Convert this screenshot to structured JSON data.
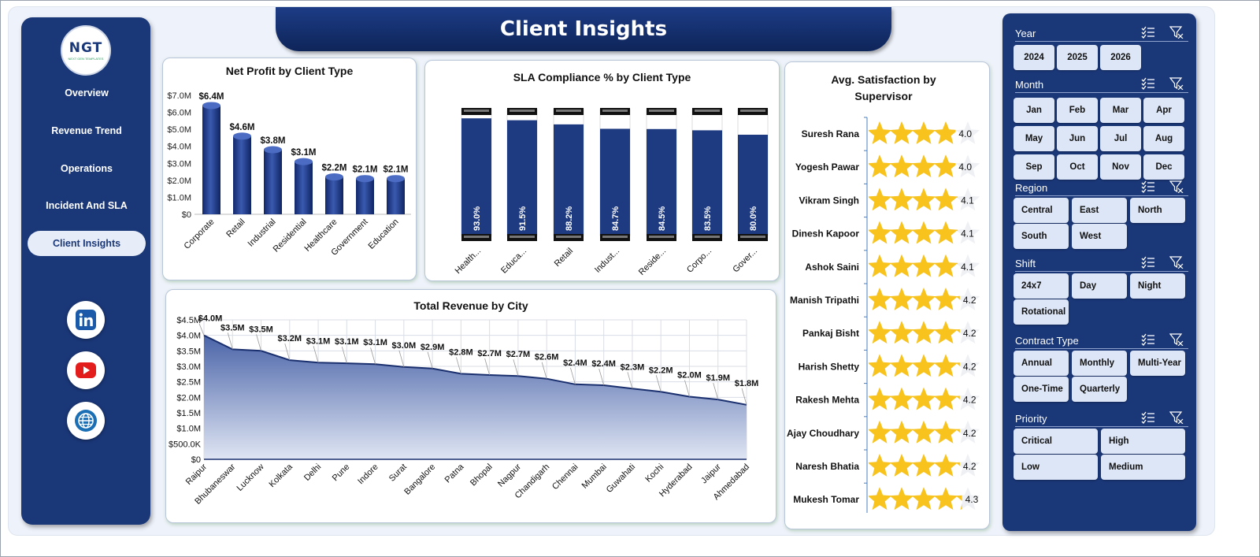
{
  "header": {
    "title": "Client Insights"
  },
  "logo": {
    "text": "NGT",
    "subtext": "NEXT GEN TEMPLATES"
  },
  "nav": {
    "items": [
      "Overview",
      "Revenue Trend",
      "Operations",
      "Incident And SLA",
      "Client Insights"
    ],
    "active": "Client Insights"
  },
  "social": [
    "linkedin-icon",
    "youtube-icon",
    "globe-icon"
  ],
  "colors": {
    "navy": "#1a3778",
    "bar": "#1e3a80",
    "star": "#f7c31c",
    "area_top": "#4a64a8",
    "area_bottom": "#dfe5f3"
  },
  "chart_data": [
    {
      "id": "net_profit",
      "type": "bar",
      "title": "Net Profit by Client Type",
      "categories": [
        "Corporate",
        "Retail",
        "Industrial",
        "Residential",
        "Healthcare",
        "Government",
        "Education"
      ],
      "values": [
        6.4,
        4.6,
        3.8,
        3.1,
        2.2,
        2.1,
        2.1
      ],
      "labels": [
        "$6.4M",
        "$4.6M",
        "$3.8M",
        "$3.1M",
        "$2.2M",
        "$2.1M",
        "$2.1M"
      ],
      "yticks": [
        "$0",
        "$1.0M",
        "$2.0M",
        "$3.0M",
        "$4.0M",
        "$5.0M",
        "$6.0M",
        "$7.0M"
      ],
      "ylim": [
        0,
        7
      ]
    },
    {
      "id": "sla",
      "type": "bar",
      "title": "SLA Compliance % by Client Type",
      "categories": [
        "Health...",
        "Educa...",
        "Retail",
        "Indust...",
        "Reside...",
        "Corpo...",
        "Gover..."
      ],
      "values": [
        93.0,
        91.5,
        88.2,
        84.7,
        84.5,
        83.5,
        80.0
      ],
      "labels": [
        "93.0%",
        "91.5%",
        "88.2%",
        "84.7%",
        "84.5%",
        "83.5%",
        "80.0%"
      ],
      "ylim": [
        0,
        100
      ]
    },
    {
      "id": "satisfaction",
      "type": "bar",
      "title": "Avg. Satisfaction by Supervisor",
      "categories": [
        "Suresh Rana",
        "Yogesh Pawar",
        "Vikram Singh",
        "Dinesh Kapoor",
        "Ashok Saini",
        "Manish Tripathi",
        "Pankaj Bisht",
        "Harish Shetty",
        "Rakesh Mehta",
        "Ajay Choudhary",
        "Naresh Bhatia",
        "Mukesh Tomar"
      ],
      "values": [
        4.0,
        4.0,
        4.1,
        4.1,
        4.1,
        4.2,
        4.2,
        4.2,
        4.2,
        4.2,
        4.2,
        4.3
      ],
      "labels": [
        "4.0",
        "4.0",
        "4.1",
        "4.1",
        "4.1",
        "4.2",
        "4.2",
        "4.2",
        "4.2",
        "4.2",
        "4.2",
        "4.3"
      ],
      "max": 5
    },
    {
      "id": "revenue_city",
      "type": "area",
      "title": "Total Revenue  by City",
      "categories": [
        "Raipur",
        "Bhubaneswar",
        "Lucknow",
        "Kolkata",
        "Delhi",
        "Pune",
        "Indore",
        "Surat",
        "Bangalore",
        "Patna",
        "Bhopal",
        "Nagpur",
        "Chandigarh",
        "Chennai",
        "Mumbai",
        "Guwahati",
        "Kochi",
        "Hyderabad",
        "Jaipur",
        "Ahmedabad"
      ],
      "values": [
        4.0,
        3.55,
        3.5,
        3.2,
        3.12,
        3.1,
        3.07,
        2.98,
        2.93,
        2.76,
        2.72,
        2.69,
        2.6,
        2.42,
        2.39,
        2.28,
        2.18,
        2.02,
        1.93,
        1.76
      ],
      "labels": [
        "$4.0M",
        "$3.5M",
        "$3.5M",
        "$3.2M",
        "$3.1M",
        "$3.1M",
        "$3.1M",
        "$3.0M",
        "$2.9M",
        "$2.8M",
        "$2.7M",
        "$2.7M",
        "$2.6M",
        "$2.4M",
        "$2.4M",
        "$2.3M",
        "$2.2M",
        "$2.0M",
        "$1.9M",
        "$1.8M"
      ],
      "yticks": [
        "$0",
        "$500.0K",
        "$1.0M",
        "$1.5M",
        "$2.0M",
        "$2.5M",
        "$3.0M",
        "$3.5M",
        "$4.0M",
        "$4.5M"
      ],
      "ylim": [
        0,
        4.5
      ]
    }
  ],
  "slicers": [
    {
      "title": "Year",
      "items": [
        "2024",
        "2025",
        "2026"
      ]
    },
    {
      "title": "Month",
      "items": [
        "Jan",
        "Feb",
        "Mar",
        "Apr",
        "May",
        "Jun",
        "Jul",
        "Aug",
        "Sep",
        "Oct",
        "Nov",
        "Dec"
      ]
    },
    {
      "title": "Region",
      "items": [
        "Central",
        "East",
        "North",
        "South",
        "West"
      ]
    },
    {
      "title": "Shift",
      "items": [
        "24x7",
        "Day",
        "Night",
        "Rotational"
      ]
    },
    {
      "title": "Contract Type",
      "items": [
        "Annual",
        "Monthly",
        "Multi-Year",
        "One-Time",
        "Quarterly"
      ]
    },
    {
      "title": "Priority",
      "items": [
        "Critical",
        "High",
        "Low",
        "Medium"
      ]
    }
  ]
}
